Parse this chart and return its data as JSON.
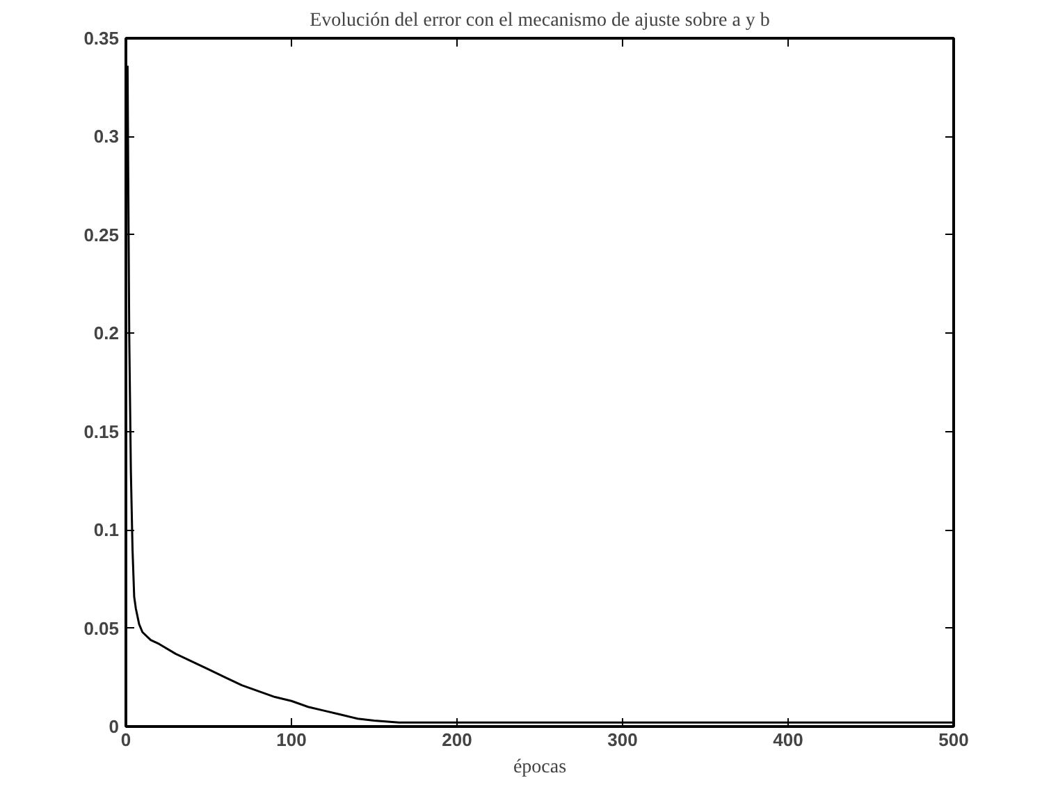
{
  "chart_data": {
    "type": "line",
    "title": "Evolución del error con el mecanismo de ajuste sobre a y b",
    "xlabel": "épocas",
    "x": [
      1,
      2,
      3,
      4,
      5,
      6,
      8,
      10,
      15,
      20,
      30,
      40,
      50,
      60,
      70,
      80,
      90,
      100,
      110,
      120,
      130,
      140,
      150,
      165,
      200,
      300,
      400,
      500
    ],
    "series": [
      {
        "color": "#000000",
        "values": [
          0.336,
          0.2,
          0.13,
          0.09,
          0.066,
          0.06,
          0.052,
          0.048,
          0.044,
          0.042,
          0.037,
          0.033,
          0.029,
          0.025,
          0.021,
          0.018,
          0.015,
          0.013,
          0.01,
          0.008,
          0.006,
          0.004,
          0.003,
          0.002,
          0.002,
          0.002,
          0.002,
          0.002
        ]
      }
    ],
    "xlim": [
      0,
      500
    ],
    "ylim": [
      0,
      0.35
    ],
    "xticks": [
      0,
      100,
      200,
      300,
      400,
      500
    ],
    "yticks": [
      0,
      0.05,
      0.1,
      0.15,
      0.2,
      0.25,
      0.3,
      0.35
    ],
    "grid": false,
    "marker": "none",
    "line_style": "solid"
  }
}
